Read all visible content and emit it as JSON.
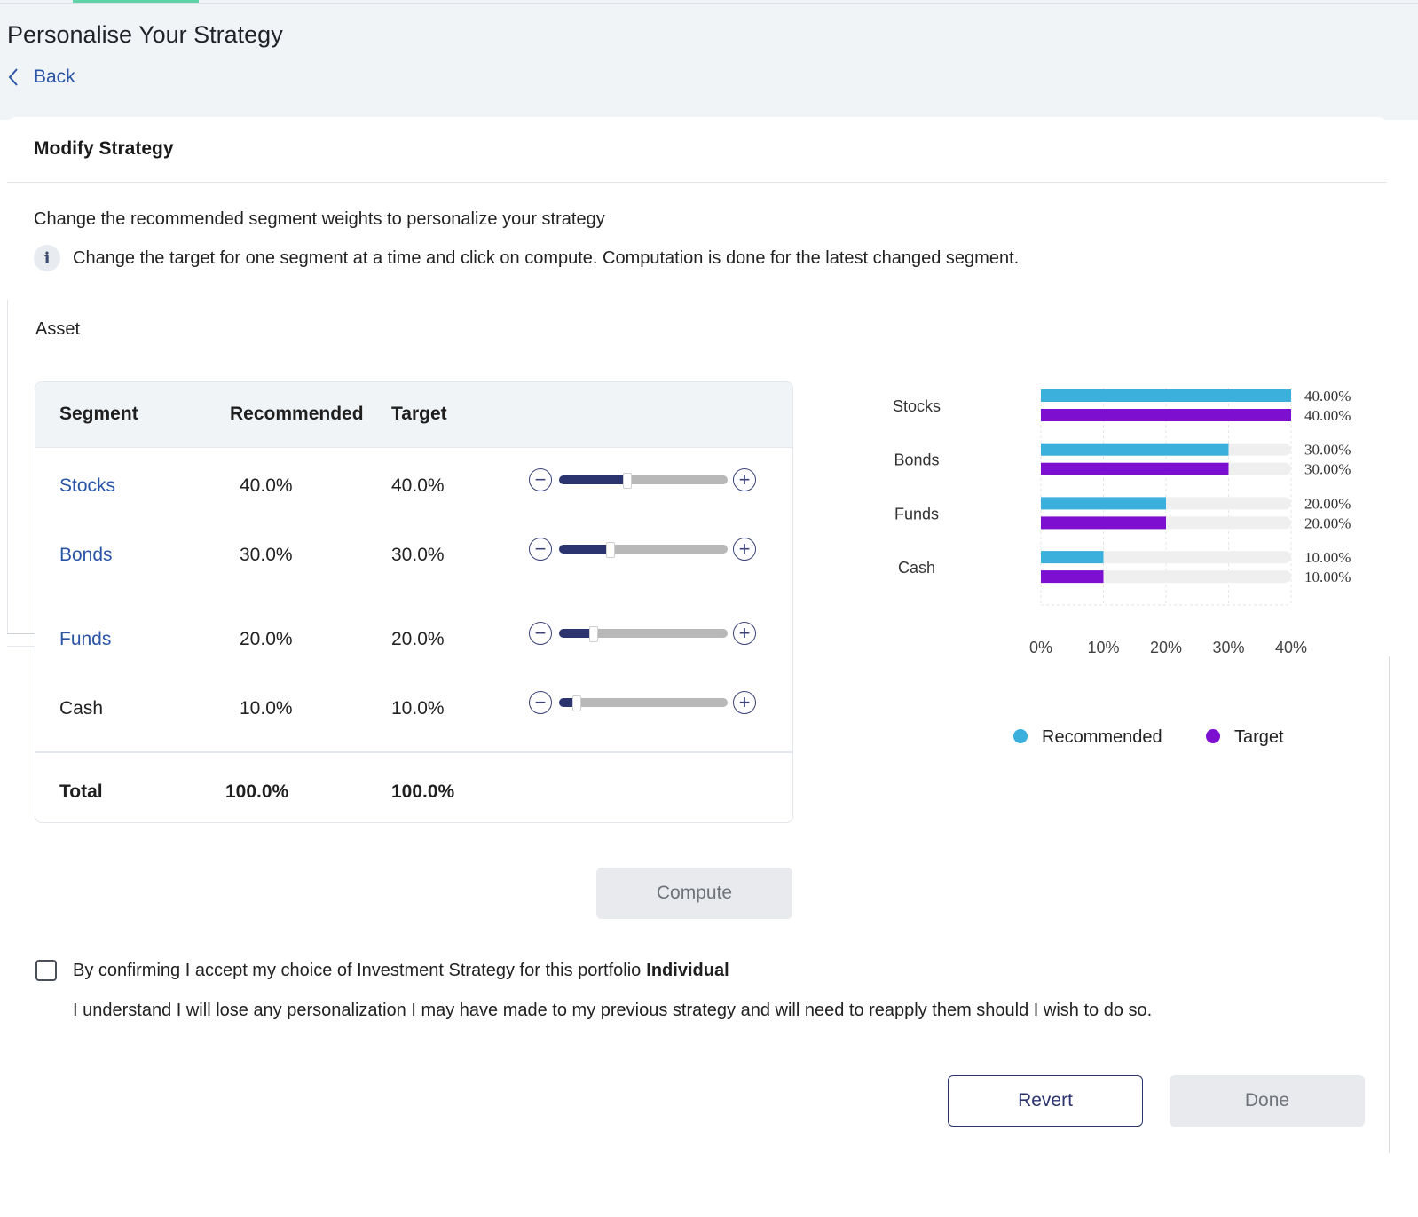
{
  "page": {
    "title": "Personalise Your Strategy",
    "back_label": "Back"
  },
  "card": {
    "title": "Modify Strategy",
    "intro": "Change the recommended segment weights to personalize your strategy",
    "info_text": "Change the target for one segment at a time and click on compute. Computation is done for the latest changed segment.",
    "info_icon": "i",
    "asset_label": "Asset"
  },
  "table": {
    "headers": {
      "segment": "Segment",
      "recommended": "Recommended",
      "target": "Target"
    },
    "rows": [
      {
        "segment": "Stocks",
        "recommended": "40.0%",
        "target": "40.0%",
        "slider_value": 0.4,
        "is_link": true
      },
      {
        "segment": "Bonds",
        "recommended": "30.0%",
        "target": "30.0%",
        "slider_value": 0.3,
        "is_link": true
      },
      {
        "segment": "Funds",
        "recommended": "20.0%",
        "target": "20.0%",
        "slider_value": 0.2,
        "is_link": true
      },
      {
        "segment": "Cash",
        "recommended": "10.0%",
        "target": "10.0%",
        "slider_value": 0.1,
        "is_link": false
      }
    ],
    "total": {
      "label": "Total",
      "recommended": "100.0%",
      "target": "100.0%"
    },
    "minus_symbol": "−",
    "plus_symbol": "+"
  },
  "chart_data": {
    "type": "bar",
    "orientation": "horizontal",
    "categories": [
      "Stocks",
      "Bonds",
      "Funds",
      "Cash"
    ],
    "series": [
      {
        "name": "Recommended",
        "values": [
          40,
          30,
          20,
          10
        ],
        "labels": [
          "40.00%",
          "30.00%",
          "20.00%",
          "10.00%"
        ],
        "color": "#3bb0dc"
      },
      {
        "name": "Target",
        "values": [
          40,
          30,
          20,
          10
        ],
        "labels": [
          "40.00%",
          "30.00%",
          "20.00%",
          "10.00%"
        ],
        "color": "#7d0fd0"
      }
    ],
    "xlim": [
      0,
      40
    ],
    "xticks": [
      "0%",
      "10%",
      "20%",
      "30%",
      "40%"
    ],
    "grid": true,
    "legend_position": "bottom",
    "track_color": "#efefef"
  },
  "buttons": {
    "compute": "Compute",
    "revert": "Revert",
    "done": "Done"
  },
  "confirm": {
    "text": "By confirming I accept my choice of Investment Strategy for this portfolio",
    "portfolio": "Individual",
    "note": "I understand I will lose any personalization I may have made to my previous strategy and will need to reapply them should I wish to do so."
  }
}
